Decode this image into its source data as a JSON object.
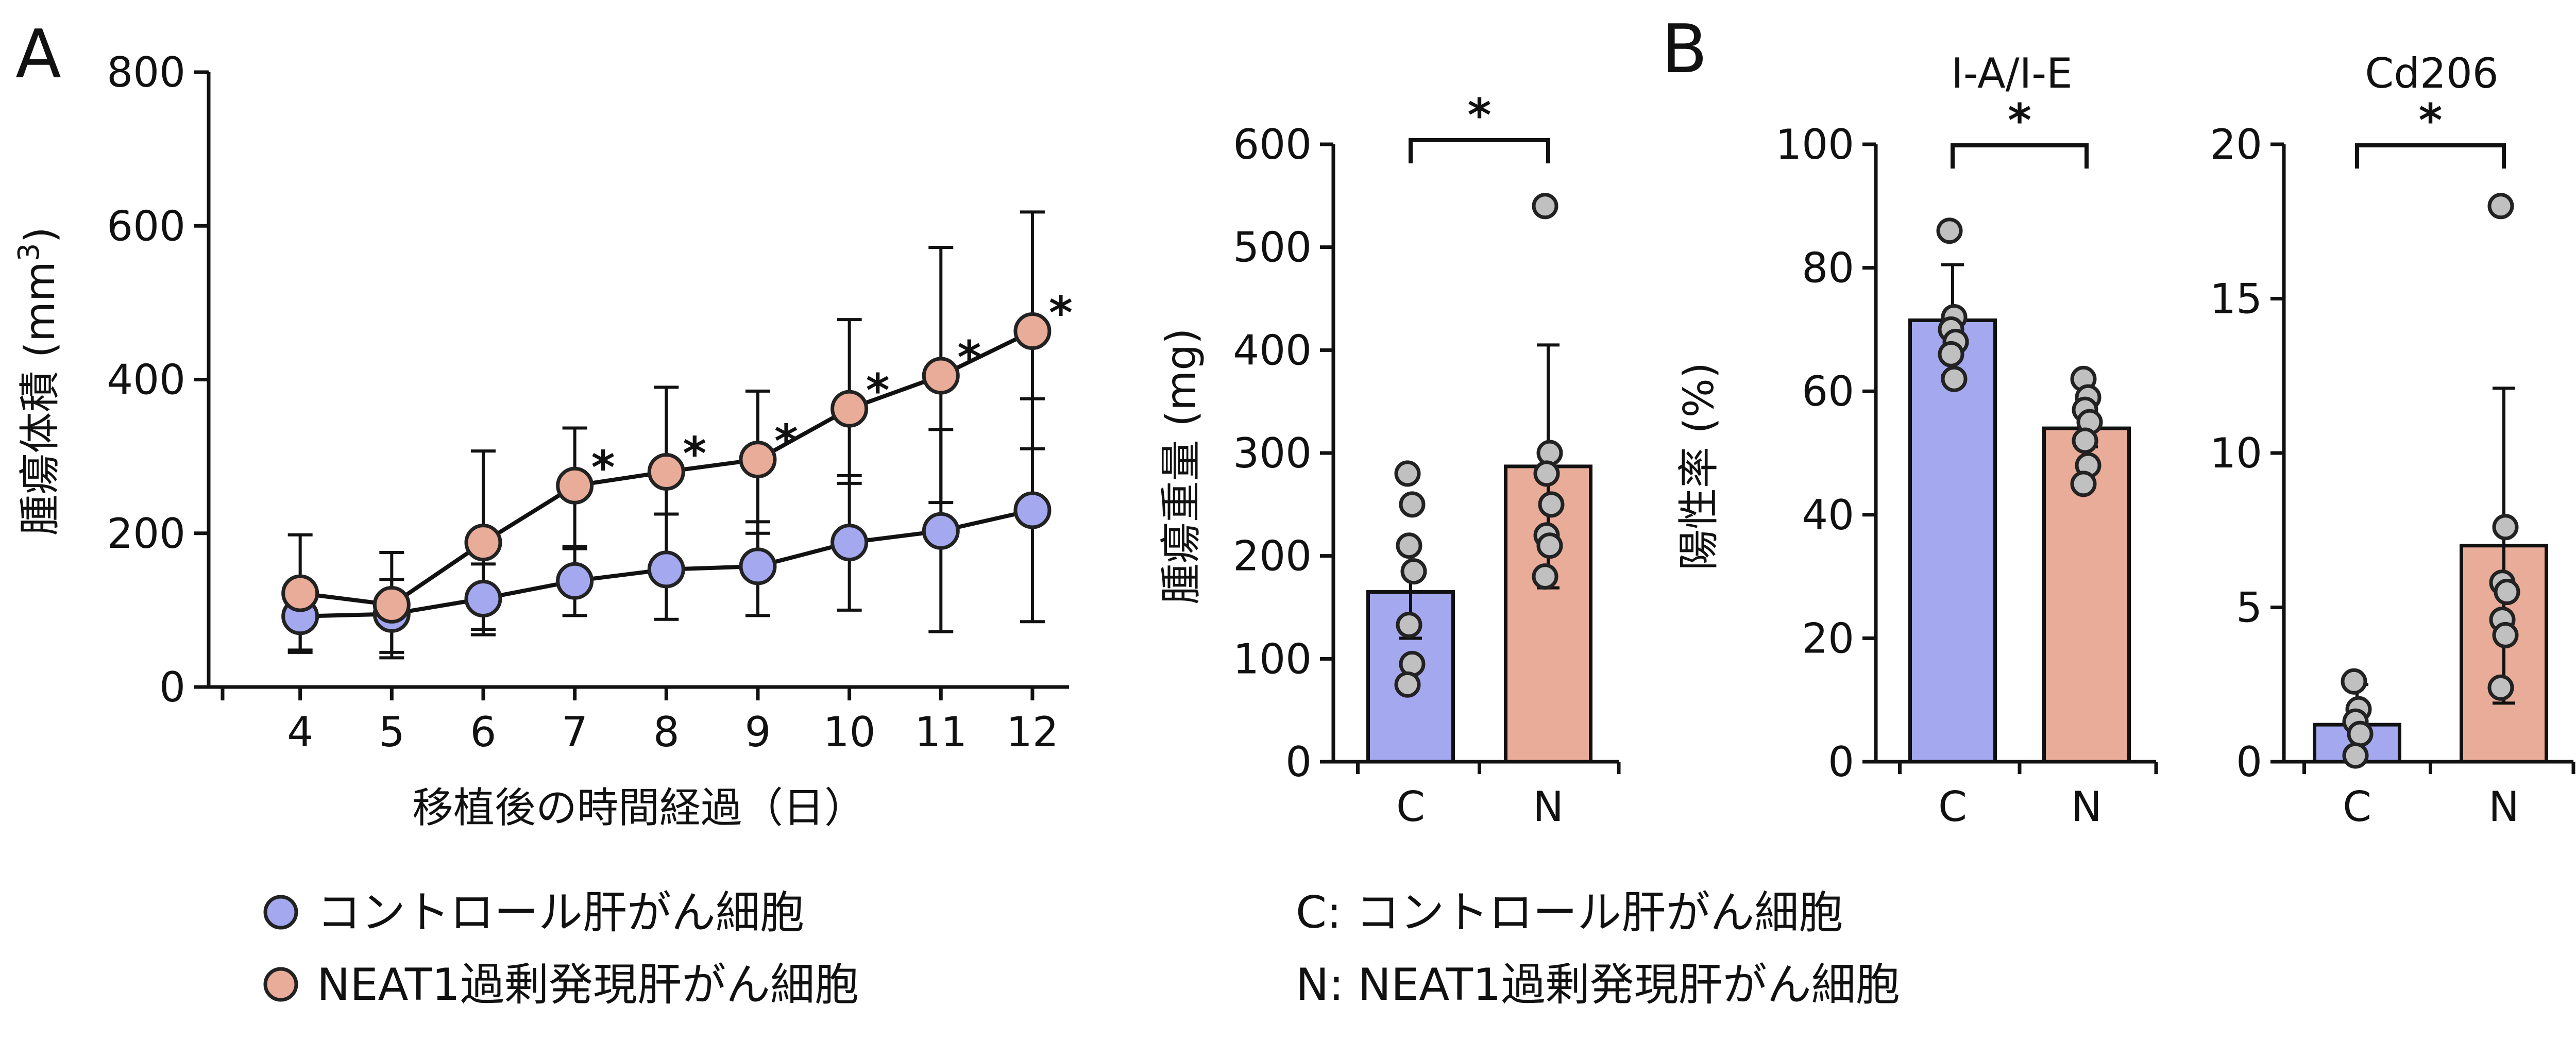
{
  "colors": {
    "control": "#a3a8ef",
    "neat1": "#e8ac98",
    "dot": "#c0c0c0",
    "ink": "#111111"
  },
  "panel_a": {
    "letter": "A",
    "ylabel": "腫瘍体積 (mm3)",
    "ylabel_main": "腫瘍体積 (mm",
    "ylabel_sup": "3",
    "ylabel_close": ")",
    "xlabel": "移植後の時間経過（日）",
    "legend": [
      {
        "label": "コントロール肝がん細胞",
        "series": "control"
      },
      {
        "label": "NEAT1過剰発現肝がん細胞",
        "series": "neat1"
      }
    ],
    "star": "*"
  },
  "panel_weight": {
    "ylabel": "腫瘍重量 (mg)",
    "sig": "*"
  },
  "panel_b": {
    "letter": "B",
    "ylabel": "陽性率 (%)",
    "footnote_c": "C: コントロール肝がん細胞",
    "footnote_n": "N: NEAT1過剰発現肝がん細胞"
  },
  "chart_data": [
    {
      "type": "line",
      "title": "",
      "xlabel": "移植後の時間経過（日）",
      "ylabel": "腫瘍体積 (mm3)",
      "x": [
        4,
        5,
        6,
        7,
        8,
        9,
        10,
        11,
        12
      ],
      "xlim": [
        3,
        12.4
      ],
      "ylim": [
        0,
        800
      ],
      "yticks": [
        0,
        200,
        400,
        600,
        800
      ],
      "series": [
        {
          "name": "コントロール肝がん細胞",
          "key": "control",
          "values": [
            92,
            95,
            115,
            138,
            153,
            157,
            188,
            203,
            230
          ],
          "upper": [
            125,
            140,
            160,
            183,
            225,
            215,
            275,
            335,
            375
          ],
          "lower": [
            48,
            45,
            75,
            93,
            88,
            93,
            100,
            72,
            85
          ]
        },
        {
          "name": "NEAT1過剰発現肝がん細胞",
          "key": "neat1",
          "values": [
            122,
            107,
            188,
            262,
            280,
            296,
            362,
            405,
            463
          ],
          "upper": [
            198,
            175,
            307,
            337,
            390,
            385,
            478,
            572,
            618
          ],
          "lower": [
            45,
            38,
            68,
            180,
            225,
            200,
            265,
            240,
            310
          ]
        }
      ],
      "significance": [
        false,
        false,
        false,
        true,
        true,
        true,
        true,
        true,
        true
      ]
    },
    {
      "type": "bar",
      "title": "",
      "ylabel": "腫瘍重量 (mg)",
      "categories": [
        "C",
        "N"
      ],
      "values": [
        165,
        287
      ],
      "errors": [
        45,
        118
      ],
      "points": [
        [
          280,
          250,
          210,
          185,
          133,
          95,
          75
        ],
        [
          540,
          300,
          280,
          250,
          220,
          210,
          180
        ]
      ],
      "ylim": [
        0,
        600
      ],
      "yticks": [
        0,
        100,
        200,
        300,
        400,
        500,
        600
      ],
      "significance": "*"
    },
    {
      "type": "bar",
      "title": "I-A/I-E",
      "ylabel": "陽性率 (%)",
      "categories": [
        "C",
        "N"
      ],
      "values": [
        71.5,
        54
      ],
      "errors": [
        9,
        3
      ],
      "points": [
        [
          86,
          72,
          70,
          68,
          66,
          62
        ],
        [
          62,
          59,
          57,
          55,
          52,
          48,
          45
        ]
      ],
      "ylim": [
        0,
        100
      ],
      "yticks": [
        0,
        20,
        40,
        60,
        80,
        100
      ],
      "significance": "*"
    },
    {
      "type": "bar",
      "title": "Cd206",
      "ylabel": "",
      "categories": [
        "C",
        "N"
      ],
      "values": [
        1.2,
        7
      ],
      "errors": [
        1.3,
        5.1
      ],
      "points": [
        [
          2.6,
          1.7,
          1.3,
          0.9,
          0.2
        ],
        [
          18,
          7.6,
          5.8,
          5.5,
          4.6,
          4.1,
          2.4
        ]
      ],
      "ylim": [
        0,
        20
      ],
      "yticks": [
        0,
        5,
        10,
        15,
        20
      ],
      "significance": "*"
    }
  ]
}
